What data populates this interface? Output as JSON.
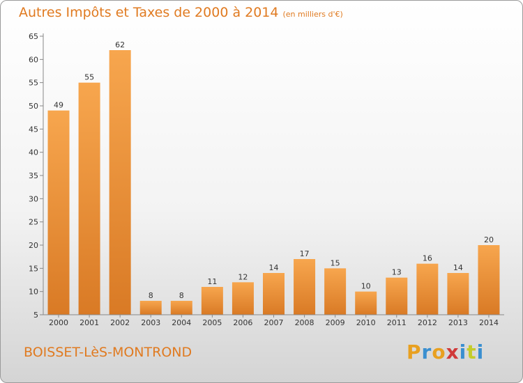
{
  "header": {
    "title": "Autres Impôts et Taxes de 2000 à 2014",
    "unit": "(en milliers d'€)"
  },
  "footer": {
    "commune": "BOISSET-LèS-MONTROND",
    "logo_text": "Proxiti",
    "logo_colors": [
      "#e8a020",
      "#3a8fd0",
      "#e8a020",
      "#d03a3a",
      "#3a8fd0",
      "#c4cc2a",
      "#3a8fd0"
    ]
  },
  "colors": {
    "accent": "#e07a20",
    "bar_light": "#f7a64e",
    "bar_dark": "#d97a25"
  },
  "chart_data": {
    "type": "bar",
    "title": "Autres Impôts et Taxes de 2000 à 2014",
    "subtitle": "(en milliers d'€)",
    "xlabel": "",
    "ylabel": "",
    "categories": [
      "2000",
      "2001",
      "2002",
      "2003",
      "2004",
      "2005",
      "2006",
      "2007",
      "2008",
      "2009",
      "2010",
      "2011",
      "2012",
      "2013",
      "2014"
    ],
    "values": [
      49,
      55,
      62,
      8,
      8,
      11,
      12,
      14,
      17,
      15,
      10,
      13,
      16,
      14,
      20
    ],
    "ylim": [
      5,
      65
    ],
    "yticks": [
      5,
      10,
      15,
      20,
      25,
      30,
      35,
      40,
      45,
      50,
      55,
      60,
      65
    ],
    "grid": false,
    "data_labels": true
  }
}
